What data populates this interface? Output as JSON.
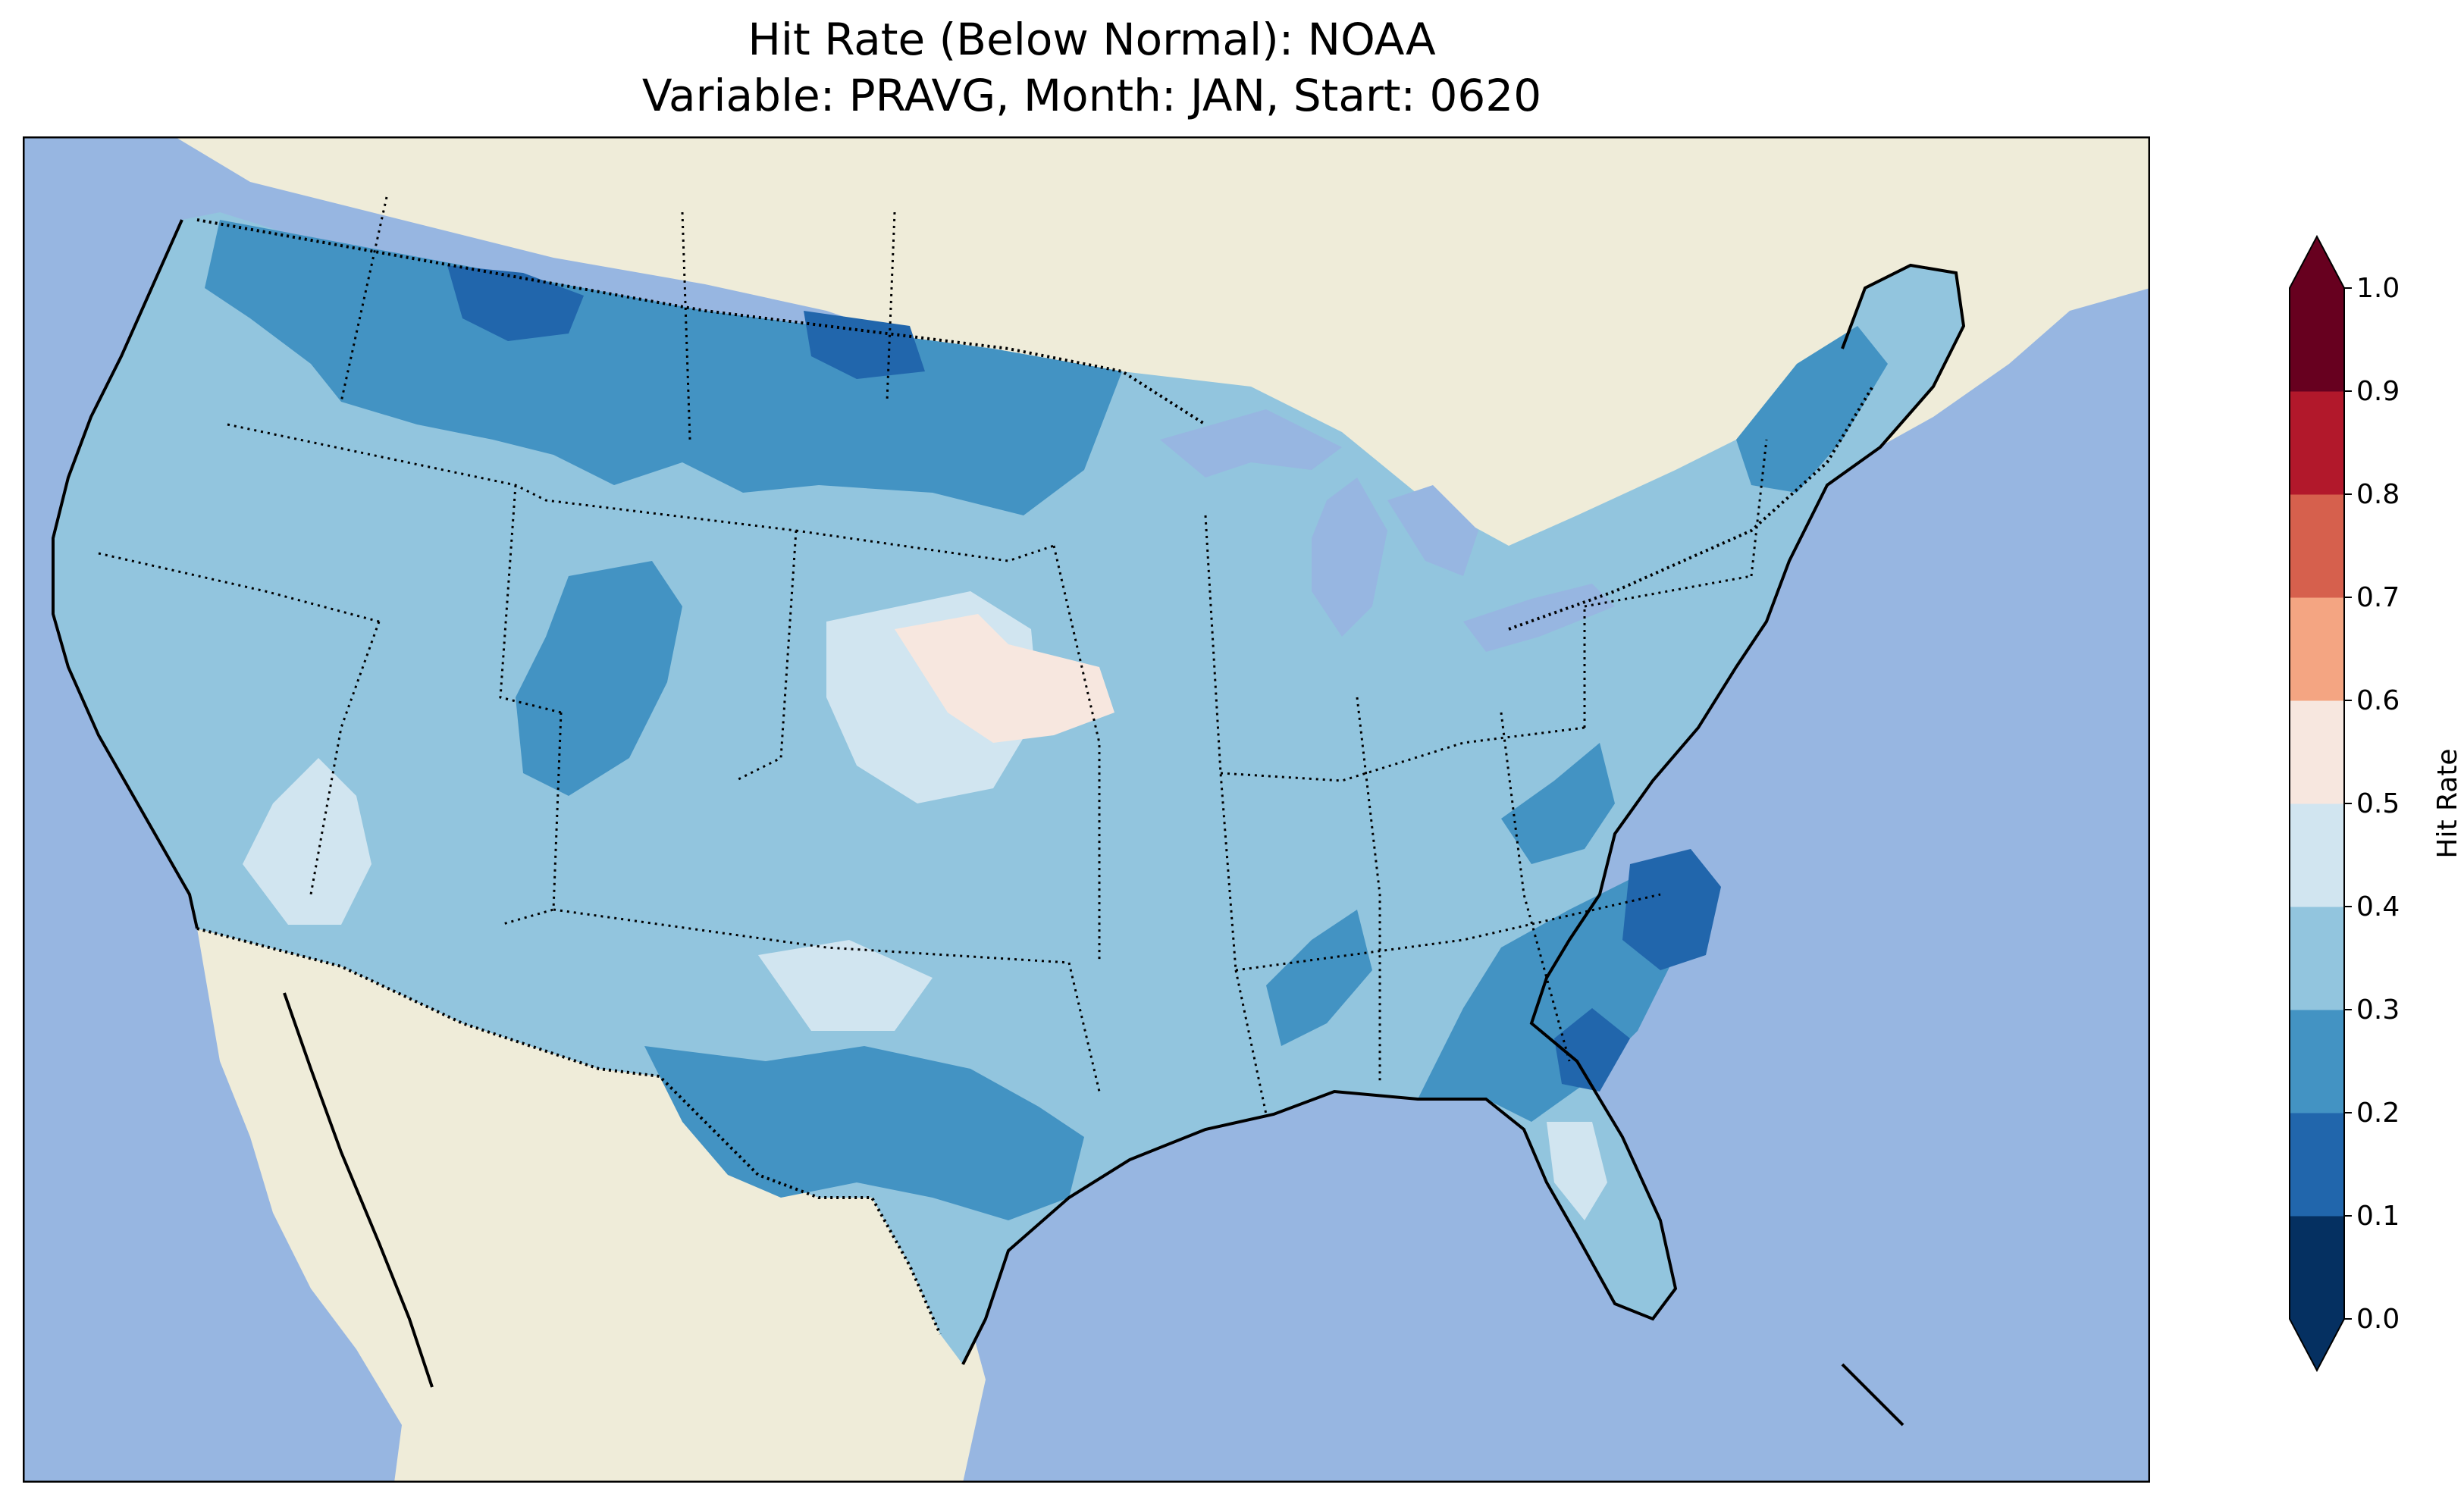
{
  "title": {
    "line1": "Hit Rate (Below Normal): NOAA",
    "line2": "Variable: PRAVG, Month: JAN, Start: 0620"
  },
  "map": {
    "ocean_color": "#97b6e1",
    "land_color": "#efecd9",
    "lake_color": "#97b6e1",
    "coastline_color": "#000000",
    "border_style": "dotted"
  },
  "colorbar": {
    "label": "Hit Rate",
    "ticks": [
      "0.0",
      "0.1",
      "0.2",
      "0.3",
      "0.4",
      "0.5",
      "0.6",
      "0.7",
      "0.8",
      "0.9",
      "1.0"
    ],
    "colors": [
      "#053061",
      "#2166ac",
      "#4393c3",
      "#92c5de",
      "#d1e5f0",
      "#f7e7df",
      "#f4a582",
      "#d6604d",
      "#b2182b",
      "#67001f"
    ],
    "extend": "both",
    "under_color": "#053061",
    "over_color": "#67001f"
  },
  "chart_data": {
    "type": "heatmap",
    "title": "Hit Rate (Below Normal): NOAA",
    "subtitle": "Variable: PRAVG, Month: JAN, Start: 0620",
    "colorbar_label": "Hit Rate",
    "value_range": [
      0.0,
      1.0
    ],
    "dominant_range": [
      0.3,
      0.4
    ],
    "regions": [
      {
        "area": "Northern Plains / Northern Rockies",
        "value_range": [
          0.1,
          0.3
        ]
      },
      {
        "area": "Eastern North Carolina / South Carolina coast",
        "value_range": [
          0.1,
          0.2
        ]
      },
      {
        "area": "Central Nebraska / South Dakota",
        "value_range": [
          0.5,
          0.6
        ]
      },
      {
        "area": "Texas / Gulf coast",
        "value_range": [
          0.2,
          0.3
        ]
      },
      {
        "area": "Florida peninsula",
        "value_range": [
          0.3,
          0.5
        ]
      },
      {
        "area": "Most of CONUS",
        "value_range": [
          0.3,
          0.4
        ]
      }
    ]
  }
}
